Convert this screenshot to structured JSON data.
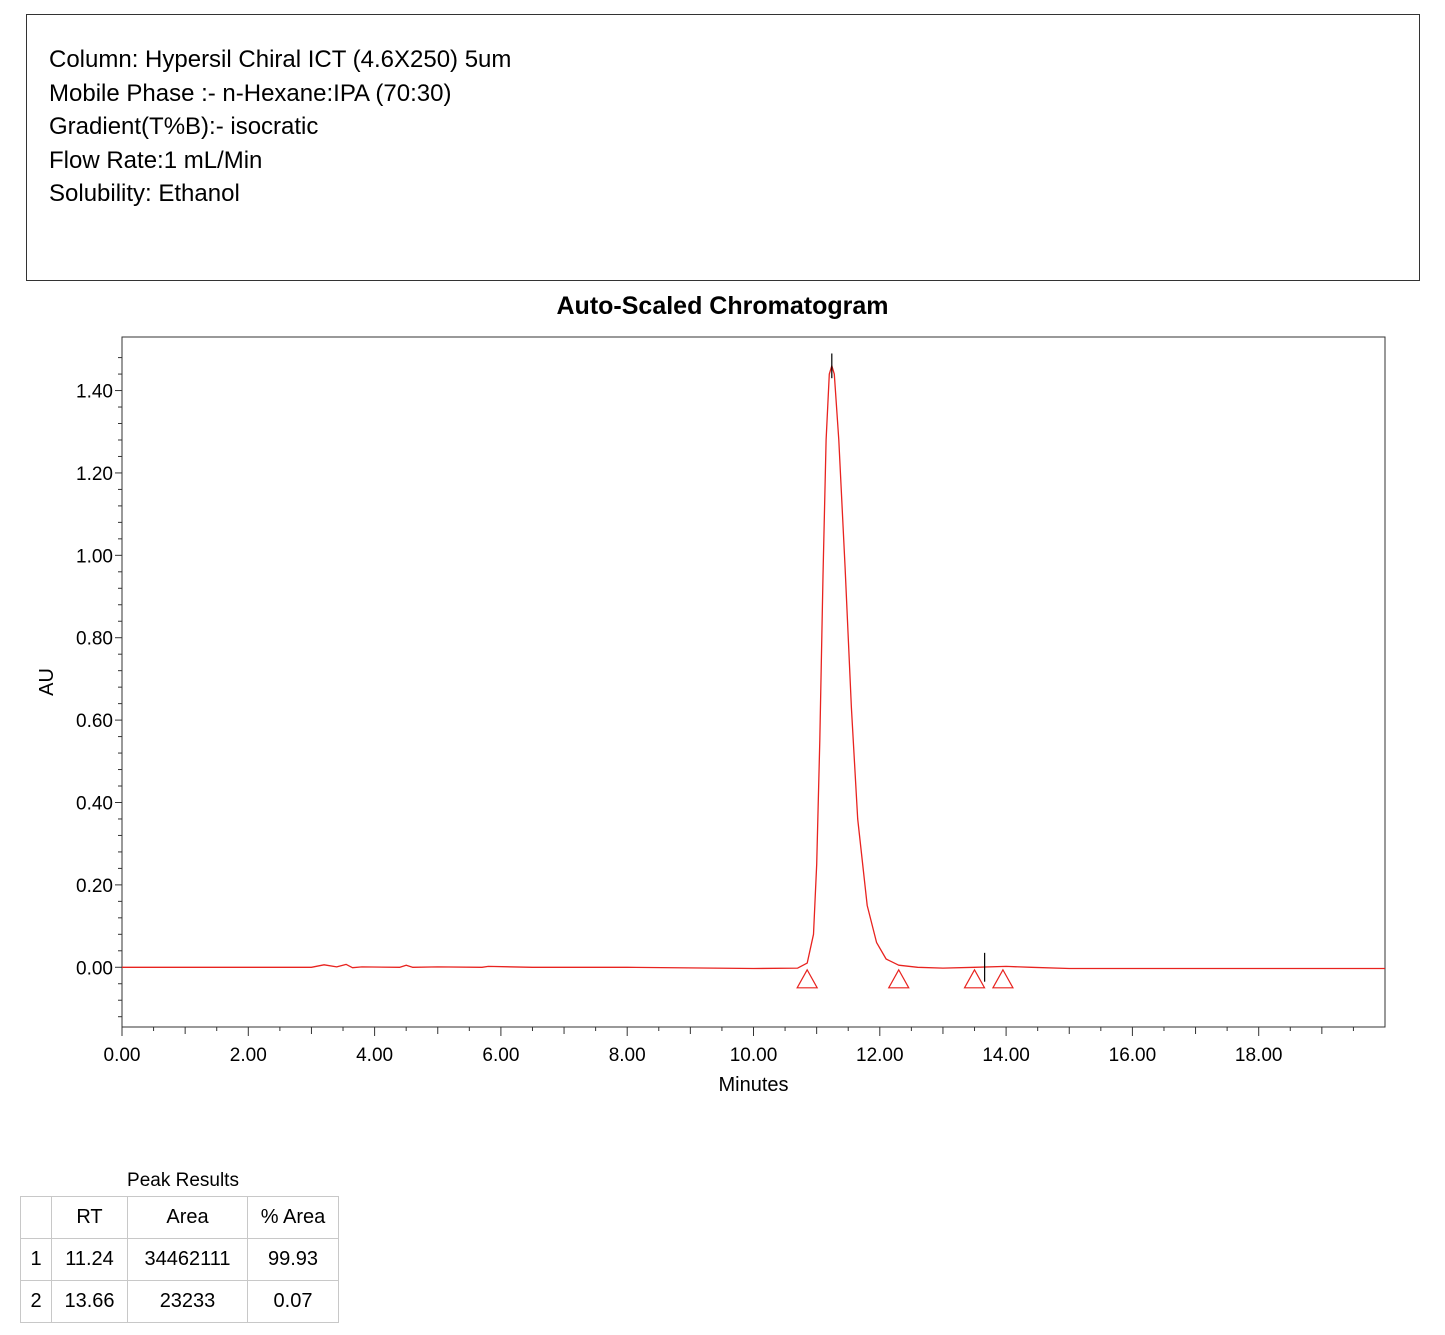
{
  "info": {
    "lines": [
      "Column: Hypersil Chiral ICT (4.6X250) 5um",
      "Mobile Phase :- n-Hexane:IPA (70:30)",
      "Gradient(T%B):- isocratic",
      "Flow Rate:1 mL/Min",
      "Solubility: Ethanol"
    ]
  },
  "chart_data": {
    "type": "line",
    "title": "Auto-Scaled Chromatogram",
    "xlabel": "Minutes",
    "ylabel": "AU",
    "xlim": [
      0,
      20
    ],
    "ylim": [
      -0.145,
      1.53
    ],
    "x_ticks": [
      "0.00",
      "2.00",
      "4.00",
      "6.00",
      "8.00",
      "10.00",
      "12.00",
      "14.00",
      "16.00",
      "18.00"
    ],
    "y_ticks": [
      "0.00",
      "0.20",
      "0.40",
      "0.60",
      "0.80",
      "1.00",
      "1.20",
      "1.40"
    ],
    "grid": false,
    "line_color": "#e8231f",
    "series": [
      {
        "x": [
          0,
          2.0,
          3.0,
          3.2,
          3.4,
          3.55,
          3.65,
          3.8,
          4.4,
          4.5,
          4.6,
          5.0,
          5.7,
          5.8,
          6.5,
          8.0,
          10.0,
          10.7,
          10.85,
          10.95,
          11.0,
          11.05,
          11.1,
          11.15,
          11.2,
          11.24,
          11.28,
          11.35,
          11.45,
          11.55,
          11.65,
          11.8,
          11.95,
          12.1,
          12.3,
          12.6,
          13.0,
          13.5,
          14.0,
          14.4,
          15.0,
          16.0,
          18.0,
          20.0
        ],
        "y": [
          0.0,
          0.0,
          0.0,
          0.006,
          0.001,
          0.007,
          -0.001,
          0.001,
          0.0,
          0.005,
          0.0,
          0.001,
          0.0,
          0.002,
          0.0,
          0.0,
          -0.003,
          -0.002,
          0.01,
          0.08,
          0.25,
          0.55,
          0.95,
          1.28,
          1.44,
          1.46,
          1.44,
          1.28,
          0.97,
          0.63,
          0.36,
          0.15,
          0.06,
          0.02,
          0.005,
          0.0,
          -0.002,
          0.0,
          0.002,
          0.0,
          -0.003,
          -0.003,
          -0.003,
          -0.003
        ]
      }
    ],
    "peak_marks": [
      {
        "x": 11.24,
        "y_top": 1.49,
        "y_bottom": 1.43
      },
      {
        "x": 13.66,
        "y_top": 0.035,
        "y_bottom": -0.035
      }
    ],
    "baseline_markers": [
      {
        "x": 10.85,
        "y": -0.028
      },
      {
        "x": 12.3,
        "y": -0.028
      },
      {
        "x": 13.5,
        "y": -0.028
      },
      {
        "x": 13.95,
        "y": -0.028
      }
    ]
  },
  "table": {
    "caption": "Peak Results",
    "headers": [
      "",
      "RT",
      "Area",
      "% Area"
    ],
    "rows": [
      [
        "1",
        "11.24",
        "34462111",
        "99.93"
      ],
      [
        "2",
        "13.66",
        "23233",
        "0.07"
      ]
    ]
  }
}
